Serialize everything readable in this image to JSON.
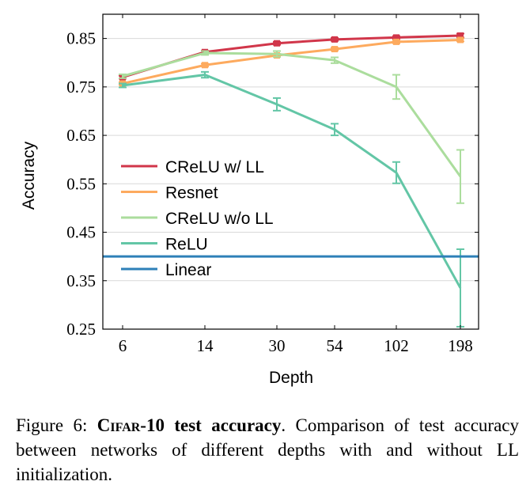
{
  "chart_data": {
    "type": "line",
    "xlabel": "Depth",
    "ylabel": "Accuracy",
    "categories": [
      "6",
      "14",
      "30",
      "54",
      "102",
      "198"
    ],
    "ylim": [
      0.25,
      0.9
    ],
    "yticks": [
      "0.25",
      "0.35",
      "0.45",
      "0.55",
      "0.65",
      "0.75",
      "0.85"
    ],
    "grid": "horizontal",
    "legend_position": "center-left",
    "series": [
      {
        "name": "CReLU w/ LL",
        "color": "#d1364a",
        "marker": "square",
        "values": [
          0.77,
          0.822,
          0.84,
          0.848,
          0.852,
          0.856
        ],
        "errors": [
          0.003,
          0.003,
          0.003,
          0.003,
          0.003,
          0.004
        ]
      },
      {
        "name": "Resnet",
        "color": "#fdaa5e",
        "marker": "square",
        "values": [
          0.757,
          0.795,
          0.815,
          0.828,
          0.843,
          0.847
        ],
        "errors": [
          0.003,
          0.003,
          0.003,
          0.003,
          0.003,
          0.003
        ]
      },
      {
        "name": "CReLU w/o LL",
        "color": "#abdd9d",
        "marker": "errorbar",
        "values": [
          0.772,
          0.82,
          0.818,
          0.805,
          0.75,
          0.565
        ],
        "errors": [
          0.004,
          0.004,
          0.006,
          0.006,
          0.025,
          0.055
        ]
      },
      {
        "name": "ReLU",
        "color": "#63c6a6",
        "marker": "errorbar",
        "values": [
          0.753,
          0.775,
          0.714,
          0.662,
          0.573,
          0.335
        ],
        "errors": [
          0.004,
          0.006,
          0.013,
          0.012,
          0.022,
          0.08
        ]
      },
      {
        "name": "Linear",
        "color": "#2e80b8",
        "marker": "none",
        "constant": 0.4
      }
    ]
  },
  "caption": {
    "label": "Figure 6:",
    "title_first": "C",
    "title_sc": "ifar",
    "title_rest": "-10 test accuracy",
    "text": ". Comparison of test accuracy between networks of different depths with and without LL initialization."
  }
}
